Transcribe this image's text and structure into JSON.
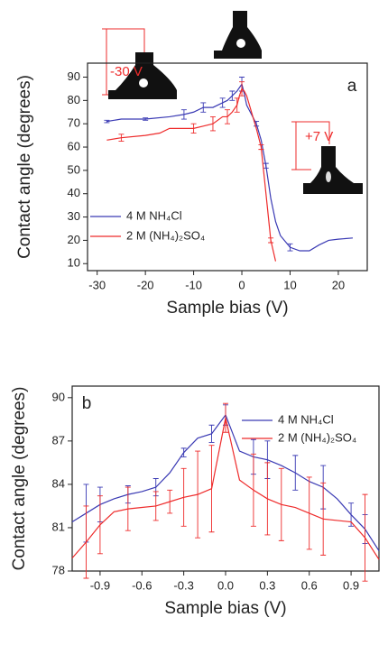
{
  "chart_data": [
    {
      "type": "line",
      "label": "a",
      "xlabel": "Sample bias (V)",
      "ylabel": "Contact angle (degrees)",
      "xlim": [
        -32,
        26
      ],
      "ylim": [
        7,
        96
      ],
      "xticks": [
        -30,
        -20,
        -10,
        0,
        10,
        20
      ],
      "yticks": [
        10,
        20,
        30,
        40,
        50,
        60,
        70,
        80,
        90
      ],
      "annotations": [
        "-30 V",
        "+7 V"
      ],
      "series": [
        {
          "name": "4 M NH₄Cl",
          "color": "#3a3ab4",
          "x": [
            -28,
            -25,
            -20,
            -15,
            -12,
            -10,
            -8,
            -6,
            -4,
            -3,
            -2,
            -1,
            0,
            0.5,
            1,
            2,
            3,
            4,
            5,
            6,
            7,
            8,
            10,
            12,
            14,
            16,
            18,
            20,
            23
          ],
          "values": [
            71,
            72,
            72,
            73,
            74,
            75,
            77,
            77,
            79,
            80,
            82,
            84,
            87,
            83,
            78,
            74,
            70,
            63,
            52,
            38,
            28,
            22,
            17,
            15.5,
            15.5,
            18,
            20,
            20.5,
            21
          ],
          "errors": [
            0.5,
            null,
            0.5,
            null,
            2,
            null,
            2,
            null,
            2,
            null,
            2,
            null,
            3,
            null,
            null,
            null,
            1,
            null,
            1,
            null,
            null,
            null,
            1.5,
            null,
            null,
            null,
            null,
            null,
            null
          ]
        },
        {
          "name": "2 M (NH₄)₂SO₄",
          "color": "#ee2b2b",
          "x": [
            -28,
            -25,
            -20,
            -17,
            -15,
            -12,
            -10,
            -8,
            -6,
            -4,
            -3,
            -2,
            -1,
            -0.5,
            0,
            0.5,
            1,
            2,
            3,
            4,
            5,
            6,
            7
          ],
          "values": [
            63,
            64,
            65,
            66,
            68,
            68,
            68,
            69,
            70,
            73,
            73,
            75,
            78,
            82,
            85,
            84,
            82,
            75,
            68,
            60,
            40,
            20,
            11
          ],
          "errors": [
            null,
            1.5,
            null,
            null,
            null,
            null,
            2,
            null,
            3,
            null,
            3,
            null,
            3,
            null,
            3,
            null,
            null,
            null,
            null,
            1,
            null,
            1,
            null
          ]
        }
      ]
    },
    {
      "type": "line",
      "label": "b",
      "xlabel": "Sample bias (V)",
      "ylabel": "Contact angle (degrees)",
      "xlim": [
        -1.1,
        1.1
      ],
      "ylim": [
        78,
        90.8
      ],
      "xticks": [
        {
          "value": -0.9,
          "label": "-0.9"
        },
        {
          "value": -0.6,
          "label": "-0.6"
        },
        {
          "value": -0.3,
          "label": "-0.3"
        },
        {
          "value": 0,
          "label": "0.0"
        },
        0.3,
        0.6,
        0.9
      ],
      "yticks": [
        78,
        81,
        84,
        87,
        90
      ],
      "series": [
        {
          "name": "4 M NH₄Cl",
          "color": "#3a3ab4",
          "x": [
            -1.1,
            -1.0,
            -0.9,
            -0.8,
            -0.7,
            -0.6,
            -0.5,
            -0.4,
            -0.3,
            -0.2,
            -0.1,
            0,
            0.1,
            0.2,
            0.3,
            0.4,
            0.5,
            0.6,
            0.7,
            0.8,
            0.9,
            1.0,
            1.1
          ],
          "values": [
            81.4,
            82.0,
            82.6,
            83.0,
            83.3,
            83.5,
            83.8,
            84.8,
            86.2,
            87.2,
            87.5,
            88.8,
            86.3,
            85.9,
            85.7,
            85.3,
            84.8,
            84.2,
            83.8,
            83.0,
            81.9,
            80.9,
            79.4
          ],
          "errors": [
            null,
            2.0,
            1.2,
            null,
            0.6,
            null,
            0.6,
            null,
            0.3,
            null,
            0.6,
            0.7,
            null,
            1.2,
            1.3,
            null,
            1.2,
            null,
            1.5,
            null,
            0.8,
            1.0,
            null
          ]
        },
        {
          "name": "2 M (NH₄)₂SO₄",
          "color": "#ee2b2b",
          "x": [
            -1.1,
            -1.0,
            -0.9,
            -0.8,
            -0.7,
            -0.6,
            -0.5,
            -0.4,
            -0.3,
            -0.2,
            -0.1,
            0,
            0.1,
            0.2,
            0.3,
            0.4,
            0.5,
            0.6,
            0.7,
            0.8,
            0.9,
            1.0,
            1.1
          ],
          "values": [
            78.9,
            80.0,
            81.2,
            82.1,
            82.3,
            82.4,
            82.5,
            82.8,
            83.1,
            83.3,
            83.7,
            88.6,
            84.3,
            83.6,
            83.0,
            82.6,
            82.4,
            82.0,
            81.6,
            81.5,
            81.4,
            80.3,
            78.8
          ],
          "errors": [
            null,
            2.5,
            2.0,
            null,
            1.5,
            null,
            1.0,
            0.8,
            2.0,
            3.0,
            3.0,
            1.0,
            null,
            2.5,
            2.5,
            2.5,
            null,
            2.5,
            2.5,
            null,
            null,
            3.0,
            null
          ]
        }
      ]
    }
  ]
}
